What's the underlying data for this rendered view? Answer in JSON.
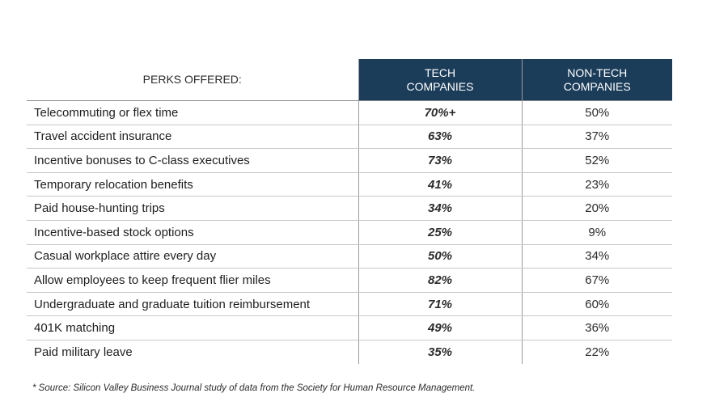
{
  "table": {
    "headers": {
      "perk": "PERKS OFFERED:",
      "tech_line1": "TECH",
      "tech_line2": "COMPANIES",
      "non_tech_line1": "NON-TECH",
      "non_tech_line2": "COMPANIES"
    },
    "rows": [
      {
        "perk": "Telecommuting or flex time",
        "tech": "70%+",
        "non_tech": "50%"
      },
      {
        "perk": "Travel accident insurance",
        "tech": "63%",
        "non_tech": "37%"
      },
      {
        "perk": "Incentive bonuses to C-class executives",
        "tech": "73%",
        "non_tech": "52%"
      },
      {
        "perk": "Temporary relocation benefits",
        "tech": "41%",
        "non_tech": "23%"
      },
      {
        "perk": "Paid house-hunting trips",
        "tech": "34%",
        "non_tech": "20%"
      },
      {
        "perk": "Incentive-based stock options",
        "tech": "25%",
        "non_tech": "9%"
      },
      {
        "perk": "Casual workplace attire every day",
        "tech": "50%",
        "non_tech": "34%"
      },
      {
        "perk": "Allow employees to keep frequent flier miles",
        "tech": "82%",
        "non_tech": "67%"
      },
      {
        "perk": "Undergraduate and graduate tuition reimbursement",
        "tech": "71%",
        "non_tech": "60%"
      },
      {
        "perk": "401K matching",
        "tech": "49%",
        "non_tech": "36%"
      },
      {
        "perk": "Paid military leave",
        "tech": "35%",
        "non_tech": "22%"
      }
    ]
  },
  "footnote": "* Source:  Silicon Valley Business Journal study of data from the Society for Human Resource Management.",
  "colors": {
    "header_background": "#1c3d5a",
    "header_text": "#ffffff"
  }
}
